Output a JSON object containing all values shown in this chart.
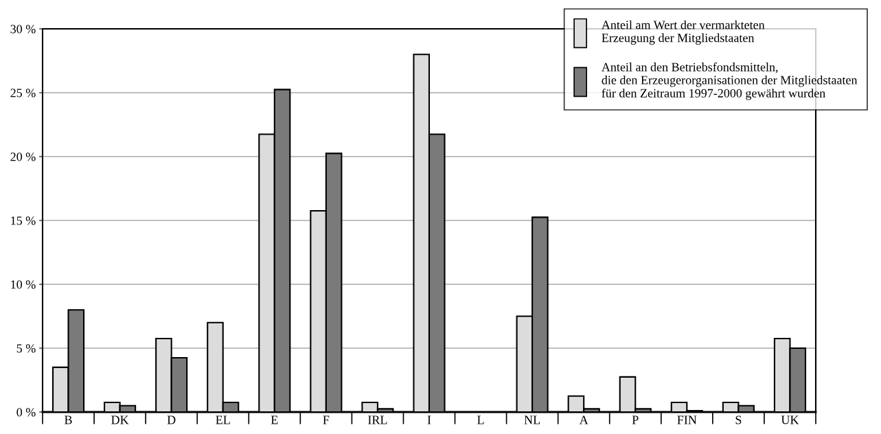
{
  "chart_data": {
    "type": "bar",
    "categories": [
      "B",
      "DK",
      "D",
      "EL",
      "E",
      "F",
      "IRL",
      "I",
      "L",
      "NL",
      "A",
      "P",
      "FIN",
      "S",
      "UK"
    ],
    "series": [
      {
        "name": "Anteil am Wert der vermarkteten\nErzeugung der Mitgliedstaaten",
        "color": "#dcdcdc",
        "values": [
          3.5,
          0.75,
          5.75,
          7,
          21.75,
          15.75,
          0.75,
          28,
          null,
          7.5,
          1.25,
          2.75,
          0.75,
          0.75,
          5.75
        ]
      },
      {
        "name": "Anteil an den Betriebsfondsmitteln,\ndie den Erzeugerorganisationen der Mitgliedstaaten\nfür den Zeitraum 1997-2000 gewährt wurden",
        "color": "#7a7a7a",
        "values": [
          8,
          0.5,
          4.25,
          0.75,
          25.25,
          20.25,
          0.25,
          21.75,
          null,
          15.25,
          0.25,
          0.25,
          0.1,
          0.5,
          5
        ]
      }
    ],
    "ylim": [
      0,
      30
    ],
    "yticks": [
      {
        "value": 0,
        "label": "0 %"
      },
      {
        "value": 5,
        "label": "5 %"
      },
      {
        "value": 10,
        "label": "10 %"
      },
      {
        "value": 15,
        "label": "15 %"
      },
      {
        "value": 20,
        "label": "20 %"
      },
      {
        "value": 25,
        "label": "25 %"
      },
      {
        "value": 30,
        "label": "30 %"
      }
    ],
    "grid": "y",
    "legend": "top right"
  }
}
